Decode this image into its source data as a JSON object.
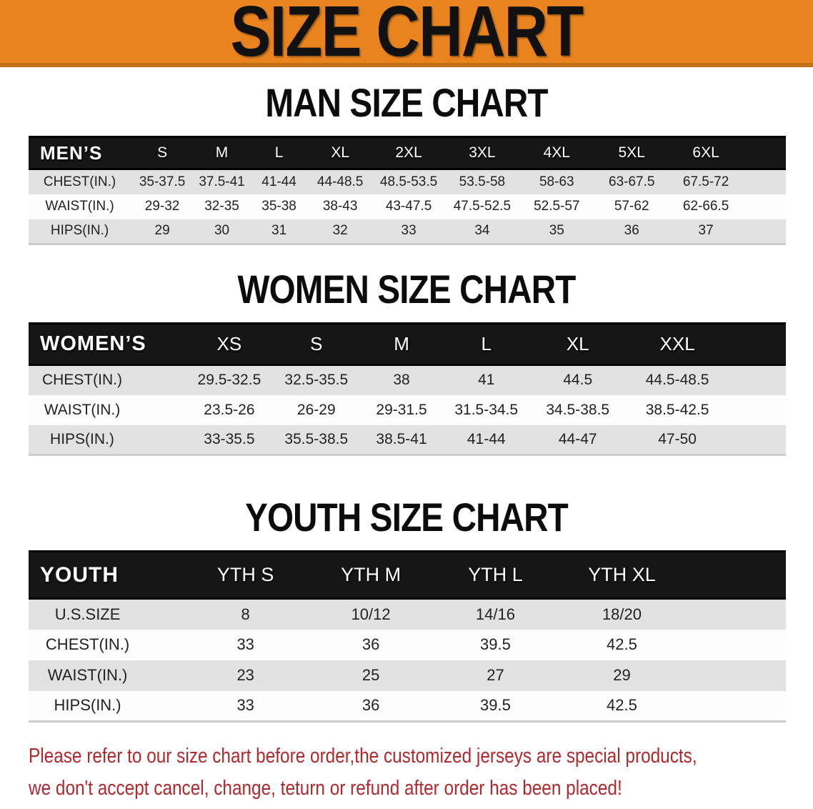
{
  "banner": {
    "title": "SIZE CHART"
  },
  "colors": {
    "banner_bg": "#E8831E",
    "banner_edge": "#C06F15",
    "banner_text": "#111111",
    "header_bar_bg": "#161616",
    "header_bar_text": "#FFFFFF",
    "row_shade": "#E2E2E2",
    "row_plain": "#FDFDFD",
    "cell_text": "#222222",
    "footnote_red": "#B3282C"
  },
  "sections": [
    {
      "id": "men",
      "heading": "MAN SIZE CHART",
      "corner_label": "MEN’S",
      "columns": [
        "S",
        "M",
        "L",
        "XL",
        "2XL",
        "3XL",
        "4XL",
        "5XL",
        "6XL"
      ],
      "rows": [
        {
          "label": "CHEST(IN.)",
          "values": [
            "35-37.5",
            "37.5-41",
            "41-44",
            "44-48.5",
            "48.5-53.5",
            "53.5-58",
            "58-63",
            "63-67.5",
            "67.5-72"
          ]
        },
        {
          "label": "WAIST(IN.)",
          "values": [
            "29-32",
            "32-35",
            "35-38",
            "38-43",
            "43-47.5",
            "47.5-52.5",
            "52.5-57",
            "57-62",
            "62-66.5"
          ]
        },
        {
          "label": "HIPS(IN.)",
          "values": [
            "29",
            "30",
            "31",
            "32",
            "33",
            "34",
            "35",
            "36",
            "37"
          ]
        }
      ]
    },
    {
      "id": "women",
      "heading": "WOMEN SIZE CHART",
      "corner_label": "WOMEN’S",
      "columns": [
        "XS",
        "S",
        "M",
        "L",
        "XL",
        "XXL"
      ],
      "rows": [
        {
          "label": "CHEST(IN.)",
          "values": [
            "29.5-32.5",
            "32.5-35.5",
            "38",
            "41",
            "44.5",
            "44.5-48.5"
          ]
        },
        {
          "label": "WAIST(IN.)",
          "values": [
            "23.5-26",
            "26-29",
            "29-31.5",
            "31.5-34.5",
            "34.5-38.5",
            "38.5-42.5"
          ]
        },
        {
          "label": "HIPS(IN.)",
          "values": [
            "33-35.5",
            "35.5-38.5",
            "38.5-41",
            "41-44",
            "44-47",
            "47-50"
          ]
        }
      ]
    },
    {
      "id": "youth",
      "heading": "YOUTH SIZE CHART",
      "corner_label": "YOUTH",
      "columns": [
        "YTH S",
        "YTH M",
        "YTH L",
        "YTH XL"
      ],
      "rows": [
        {
          "label": "U.S.SIZE",
          "values": [
            "8",
            "10/12",
            "14/16",
            "18/20"
          ]
        },
        {
          "label": "CHEST(IN.)",
          "values": [
            "33",
            "36",
            "39.5",
            "42.5"
          ]
        },
        {
          "label": "WAIST(IN.)",
          "values": [
            "23",
            "25",
            "27",
            "29"
          ]
        },
        {
          "label": "HIPS(IN.)",
          "values": [
            "33",
            "36",
            "39.5",
            "42.5"
          ]
        }
      ]
    }
  ],
  "footnote": {
    "lines": [
      "Please refer to our size chart before order,the customized jerseys are special products,",
      "we don't accept cancel, change, teturn or refund after order has been placed!"
    ]
  }
}
